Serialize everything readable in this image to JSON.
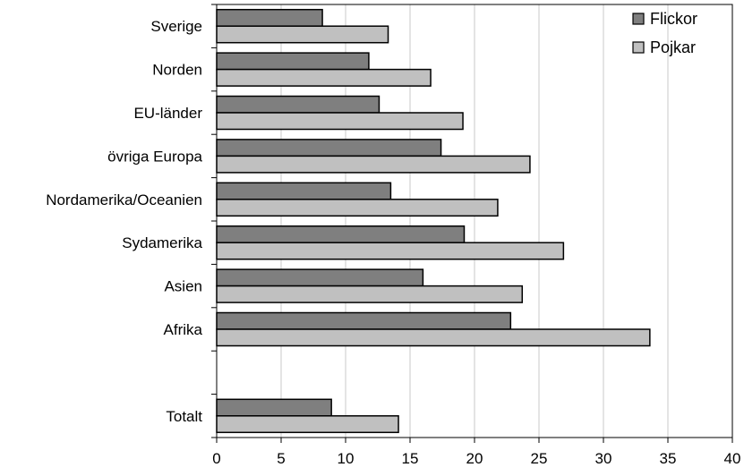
{
  "chart_data": {
    "type": "bar",
    "orientation": "horizontal",
    "categories": [
      "Sverige",
      "Norden",
      "EU-länder",
      "övriga Europa",
      "Nordamerika/Oceanien",
      "Sydamerika",
      "Asien",
      "Afrika",
      "",
      "Totalt"
    ],
    "series": [
      {
        "name": "Flickor",
        "color": "#7f7f7f",
        "values": [
          8.2,
          11.8,
          12.6,
          17.4,
          13.5,
          19.2,
          16.0,
          22.8,
          null,
          8.9
        ]
      },
      {
        "name": "Pojkar",
        "color": "#c0c0c0",
        "values": [
          13.3,
          16.6,
          19.1,
          24.3,
          21.8,
          26.9,
          23.7,
          33.6,
          null,
          14.1
        ]
      }
    ],
    "xlim": [
      0,
      40
    ],
    "xticks": [
      0,
      5,
      10,
      15,
      20,
      25,
      30,
      35,
      40
    ],
    "title": "",
    "xlabel": "",
    "ylabel": "",
    "grid": "vertical",
    "legend": "top-right"
  }
}
